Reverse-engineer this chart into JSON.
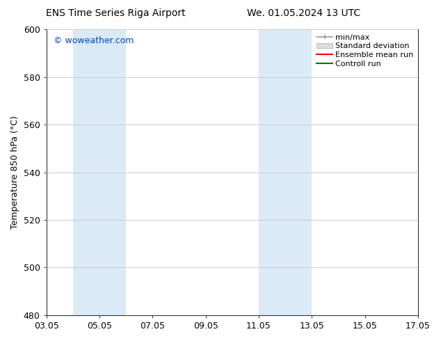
{
  "title_left": "ENS Time Series Riga Airport",
  "title_right": "We. 01.05.2024 13 UTC",
  "ylabel": "Temperature 850 hPa (°C)",
  "xtick_labels": [
    "03.05",
    "05.05",
    "07.05",
    "09.05",
    "11.05",
    "13.05",
    "15.05",
    "17.05"
  ],
  "xtick_positions": [
    0,
    2,
    4,
    6,
    8,
    10,
    12,
    14
  ],
  "ylim": [
    480,
    600
  ],
  "ytick_positions": [
    480,
    500,
    520,
    540,
    560,
    580,
    600
  ],
  "ytick_labels": [
    "480",
    "500",
    "520",
    "540",
    "560",
    "580",
    "600"
  ],
  "shaded_bands": [
    {
      "x_start": 1.0,
      "x_end": 3.0,
      "color": "#daeaf7"
    },
    {
      "x_start": 8.0,
      "x_end": 10.0,
      "color": "#daeaf7"
    }
  ],
  "watermark_text": "© woweather.com",
  "watermark_color": "#0044cc",
  "background_color": "#ffffff",
  "plot_bg_color": "#ffffff",
  "legend_entries": [
    {
      "label": "min/max",
      "color": "#aaaaaa"
    },
    {
      "label": "Standard deviation",
      "color": "#cccccc"
    },
    {
      "label": "Ensemble mean run",
      "color": "#ff0000"
    },
    {
      "label": "Controll run",
      "color": "#007700"
    }
  ],
  "grid_color": "#cccccc",
  "title_fontsize": 10,
  "ylabel_fontsize": 9,
  "tick_fontsize": 9,
  "legend_fontsize": 8,
  "watermark_fontsize": 9
}
